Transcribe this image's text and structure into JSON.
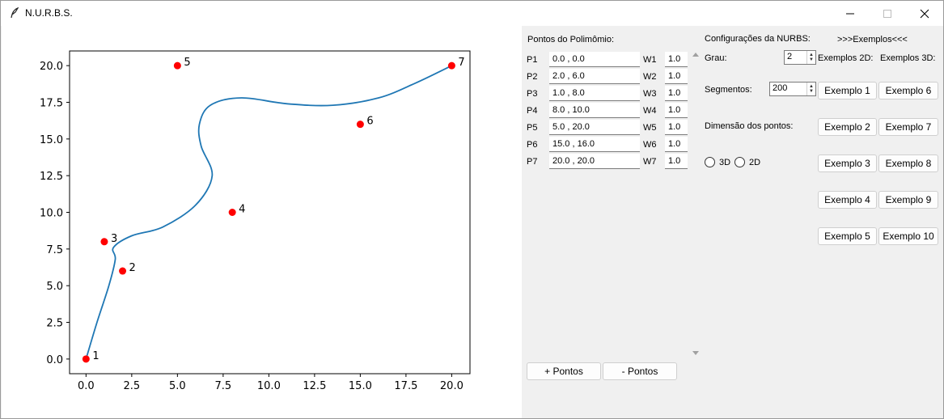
{
  "window": {
    "title": "N.U.R.B.S.",
    "icon": "feather-icon",
    "controls": [
      "minimize-icon",
      "maximize-icon",
      "close-icon"
    ]
  },
  "points_panel": {
    "header": "Pontos do Polimômio:",
    "rows": [
      {
        "p_label": "P1",
        "coords": "0.0 , 0.0",
        "w_label": "W1",
        "weight": "1.0"
      },
      {
        "p_label": "P2",
        "coords": "2.0 , 6.0",
        "w_label": "W2",
        "weight": "1.0"
      },
      {
        "p_label": "P3",
        "coords": "1.0 , 8.0",
        "w_label": "W3",
        "weight": "1.0"
      },
      {
        "p_label": "P4",
        "coords": "8.0 , 10.0",
        "w_label": "W4",
        "weight": "1.0"
      },
      {
        "p_label": "P5",
        "coords": "5.0 , 20.0",
        "w_label": "W5",
        "weight": "1.0"
      },
      {
        "p_label": "P6",
        "coords": "15.0 , 16.0",
        "w_label": "W6",
        "weight": "1.0"
      },
      {
        "p_label": "P7",
        "coords": "20.0 , 20.0",
        "w_label": "W7",
        "weight": "1.0"
      }
    ],
    "add_button": "+ Pontos",
    "remove_button": "- Pontos"
  },
  "config": {
    "header": "Configurações da NURBS:",
    "examples_header": ">>>Exemplos<<<",
    "grau_label": "Grau:",
    "grau_value": "2",
    "examples_2d_label": "Exemplos 2D:",
    "examples_3d_label": "Exemplos 3D:",
    "segmentos_label": "Segmentos:",
    "segmentos_value": "200",
    "dimensao_label": "Dimensão dos pontos:",
    "radio_3d": "3D",
    "radio_2d": "2D",
    "examples_2d": [
      "Exemplo 1",
      "Exemplo 2",
      "Exemplo 3",
      "Exemplo 4",
      "Exemplo 5"
    ],
    "examples_3d": [
      "Exemplo 6",
      "Exemplo 7",
      "Exemplo 8",
      "Exemplo 9",
      "Exemplo 10"
    ]
  },
  "chart_data": {
    "type": "line",
    "title": "",
    "xlabel": "",
    "ylabel": "",
    "xlim": [
      -0.9,
      21.0
    ],
    "ylim": [
      -1.0,
      21.0
    ],
    "xticks": [
      "0.0",
      "2.5",
      "5.0",
      "7.5",
      "10.0",
      "12.5",
      "15.0",
      "17.5",
      "20.0"
    ],
    "yticks": [
      "0.0",
      "2.5",
      "5.0",
      "7.5",
      "10.0",
      "12.5",
      "15.0",
      "17.5",
      "20.0"
    ],
    "control_points": [
      {
        "label": "1",
        "x": 0.0,
        "y": 0.0
      },
      {
        "label": "2",
        "x": 2.0,
        "y": 6.0
      },
      {
        "label": "3",
        "x": 1.0,
        "y": 8.0
      },
      {
        "label": "4",
        "x": 8.0,
        "y": 10.0
      },
      {
        "label": "5",
        "x": 5.0,
        "y": 20.0
      },
      {
        "label": "6",
        "x": 15.0,
        "y": 16.0
      },
      {
        "label": "7",
        "x": 20.0,
        "y": 20.0
      }
    ],
    "curve": {
      "x": [
        0.0,
        0.6,
        1.25,
        1.6,
        1.5,
        2.5,
        4.2,
        6.0,
        6.9,
        6.3,
        6.2,
        6.8,
        8.5,
        11.0,
        13.5,
        16.0,
        18.0,
        20.0
      ],
      "y": [
        0.0,
        2.5,
        5.0,
        6.8,
        7.6,
        8.4,
        9.0,
        10.5,
        12.5,
        14.5,
        16.0,
        17.3,
        17.8,
        17.4,
        17.3,
        17.8,
        18.8,
        20.0
      ]
    },
    "colors": {
      "curve": "#1f77b4",
      "points": "#ff0000"
    },
    "grid": false
  }
}
